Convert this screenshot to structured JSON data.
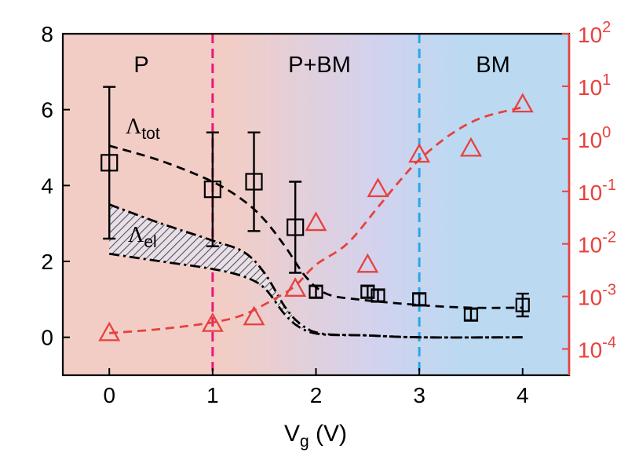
{
  "chart_data": {
    "type": "scatter",
    "xlabel": "V",
    "xlabel_sub": "g",
    "xlabel_unit": " (V)",
    "xlim": [
      -0.45,
      4.45
    ],
    "xticks": [
      "0",
      "1",
      "2",
      "3",
      "4"
    ],
    "ylim_left": [
      -1,
      8
    ],
    "yticks_left": [
      "0",
      "2",
      "4",
      "6",
      "8"
    ],
    "ylim_right_log": [
      -4.5,
      2
    ],
    "yticks_right": [
      {
        "base": "10",
        "exp": "-4"
      },
      {
        "base": "10",
        "exp": "-3"
      },
      {
        "base": "10",
        "exp": "-2"
      },
      {
        "base": "10",
        "exp": "-1"
      },
      {
        "base": "10",
        "exp": "0"
      },
      {
        "base": "10",
        "exp": "1"
      },
      {
        "base": "10",
        "exp": "2"
      }
    ],
    "regions": [
      "P",
      "P+BM",
      "BM"
    ],
    "region_boundaries": [
      1,
      3
    ],
    "colors": {
      "left_axis": "#000000",
      "right_axis": "#e8413c",
      "boundary_1": "#e8197a",
      "boundary_2": "#27a8e6",
      "region_P": "#f2cdc6",
      "region_BM": "#bcd9f2"
    },
    "annotations": {
      "tot": {
        "symbol": "Λ",
        "sub": "tot"
      },
      "el": {
        "symbol": "Λ",
        "sub": "el"
      }
    },
    "series": [
      {
        "axis": "left",
        "marker": "square",
        "points": [
          {
            "x": 0,
            "y": 4.6,
            "err": 2.0
          },
          {
            "x": 1,
            "y": 3.9,
            "err": 1.5
          },
          {
            "x": 1.4,
            "y": 4.1,
            "err": 1.3
          },
          {
            "x": 1.8,
            "y": 2.9,
            "err": 1.2
          },
          {
            "x": 2,
            "y": 1.2,
            "err": 0.15
          },
          {
            "x": 2.5,
            "y": 1.2,
            "err": 0.15
          },
          {
            "x": 2.6,
            "y": 1.1,
            "err": 0.15
          },
          {
            "x": 3,
            "y": 1.0,
            "err": 0.15
          },
          {
            "x": 3.5,
            "y": 0.6,
            "err": 0.15
          },
          {
            "x": 4,
            "y": 0.85,
            "err": 0.3
          }
        ]
      },
      {
        "axis": "right",
        "marker": "triangle",
        "points": [
          {
            "x": 0,
            "y": 0.0002
          },
          {
            "x": 1,
            "y": 0.0003
          },
          {
            "x": 1.4,
            "y": 0.0004
          },
          {
            "x": 1.8,
            "y": 0.0014
          },
          {
            "x": 2,
            "y": 0.025
          },
          {
            "x": 2.5,
            "y": 0.004
          },
          {
            "x": 2.6,
            "y": 0.11
          },
          {
            "x": 3,
            "y": 0.5
          },
          {
            "x": 3.5,
            "y": 0.65
          },
          {
            "x": 4,
            "y": 4.5
          }
        ]
      },
      {
        "axis": "left",
        "style": "dashed",
        "points": [
          {
            "x": 0,
            "y": 5.05
          },
          {
            "x": 0.5,
            "y": 4.65
          },
          {
            "x": 1,
            "y": 4.1
          },
          {
            "x": 1.3,
            "y": 3.6
          },
          {
            "x": 1.5,
            "y": 3.1
          },
          {
            "x": 1.7,
            "y": 2.4
          },
          {
            "x": 1.9,
            "y": 1.6
          },
          {
            "x": 2.1,
            "y": 1.15
          },
          {
            "x": 2.4,
            "y": 1.0
          },
          {
            "x": 3,
            "y": 0.85
          },
          {
            "x": 3.5,
            "y": 0.78
          },
          {
            "x": 4,
            "y": 0.78
          }
        ]
      },
      {
        "axis": "left",
        "style": "dash-dot",
        "points": [
          {
            "x": 0,
            "y": 3.5
          },
          {
            "x": 0.5,
            "y": 3.0
          },
          {
            "x": 1,
            "y": 2.55
          },
          {
            "x": 1.3,
            "y": 2.25
          },
          {
            "x": 1.5,
            "y": 1.7
          },
          {
            "x": 1.7,
            "y": 0.8
          },
          {
            "x": 1.85,
            "y": 0.35
          },
          {
            "x": 2.05,
            "y": 0.1
          },
          {
            "x": 2.5,
            "y": 0.05
          },
          {
            "x": 3,
            "y": 0.0
          },
          {
            "x": 4,
            "y": 0.0
          }
        ]
      },
      {
        "axis": "left",
        "style": "dash-dot",
        "points": [
          {
            "x": 0,
            "y": 2.2
          },
          {
            "x": 0.5,
            "y": 2.0
          },
          {
            "x": 1,
            "y": 1.8
          },
          {
            "x": 1.3,
            "y": 1.6
          },
          {
            "x": 1.5,
            "y": 1.3
          },
          {
            "x": 1.7,
            "y": 0.6
          },
          {
            "x": 1.85,
            "y": 0.25
          },
          {
            "x": 2.05,
            "y": 0.08
          },
          {
            "x": 2.5,
            "y": 0.05
          },
          {
            "x": 3,
            "y": 0.0
          },
          {
            "x": 4,
            "y": 0.0
          }
        ]
      },
      {
        "axis": "right",
        "style": "dashed",
        "points": [
          {
            "x": 0,
            "y": 0.0002
          },
          {
            "x": 0.5,
            "y": 0.00024
          },
          {
            "x": 1,
            "y": 0.00032
          },
          {
            "x": 1.3,
            "y": 0.00045
          },
          {
            "x": 1.6,
            "y": 0.0009
          },
          {
            "x": 1.8,
            "y": 0.0016
          },
          {
            "x": 2,
            "y": 0.004
          },
          {
            "x": 2.3,
            "y": 0.01
          },
          {
            "x": 2.6,
            "y": 0.05
          },
          {
            "x": 2.8,
            "y": 0.15
          },
          {
            "x": 3,
            "y": 0.4
          },
          {
            "x": 3.3,
            "y": 1.2
          },
          {
            "x": 3.6,
            "y": 2.5
          },
          {
            "x": 4,
            "y": 4.0
          }
        ]
      }
    ]
  }
}
